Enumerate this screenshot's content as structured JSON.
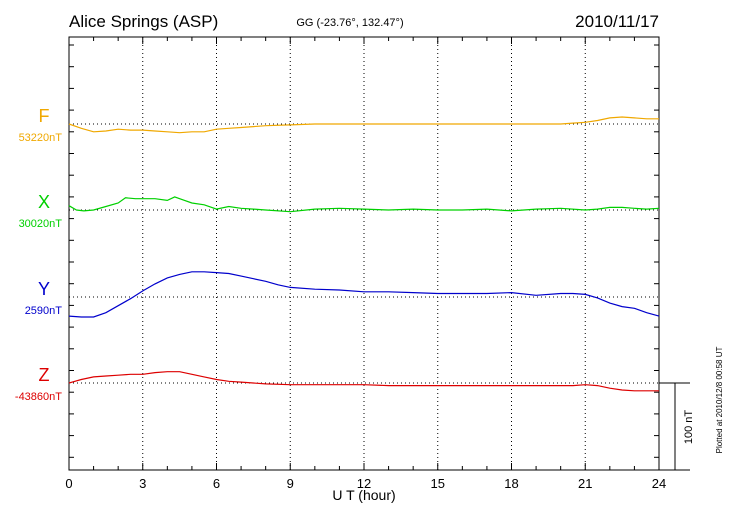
{
  "header": {
    "station": "Alice Springs (ASP)",
    "coords": "GG (-23.76°, 132.47°)",
    "date": "2010/11/17"
  },
  "footnote": "Plotted at 2010/12/8 00:58 UT",
  "colors": {
    "F": "#f0a800",
    "X": "#00d000",
    "Y": "#0000cc",
    "Z": "#dd0000",
    "grid": "#000000"
  },
  "chart_data": {
    "type": "line",
    "xlabel": "U T (hour)",
    "xlim": [
      0,
      24
    ],
    "xticks": [
      0,
      3,
      6,
      9,
      12,
      15,
      18,
      21,
      24
    ],
    "ylabel": "",
    "scale_bar": {
      "value": 100,
      "label": "100 nT"
    },
    "series": [
      {
        "name": "F",
        "baseline_label": "53220nT",
        "baseline": 53220,
        "x": [
          0,
          0.5,
          1,
          1.5,
          2,
          2.5,
          3,
          3.5,
          4,
          4.5,
          5,
          5.5,
          6,
          6.5,
          7,
          8,
          9,
          10,
          11,
          12,
          13,
          14,
          15,
          16,
          17,
          18,
          19,
          20,
          20.5,
          21,
          21.5,
          22,
          22.5,
          23,
          23.5,
          24
        ],
        "y": [
          53220,
          53215,
          53211,
          53212,
          53214,
          53213,
          53213,
          53212,
          53211,
          53210,
          53211,
          53211,
          53214,
          53215,
          53216,
          53218,
          53219,
          53220,
          53220,
          53220,
          53220,
          53220,
          53220,
          53220,
          53220,
          53220,
          53220,
          53220,
          53221,
          53222,
          53224,
          53227,
          53228,
          53227,
          53226,
          53226
        ]
      },
      {
        "name": "X",
        "baseline_label": "30020nT",
        "baseline": 30020,
        "x": [
          0,
          0.3,
          0.6,
          1,
          1.5,
          2,
          2.3,
          2.7,
          3,
          3.5,
          4,
          4.3,
          4.6,
          5,
          5.5,
          6,
          6.5,
          7,
          7.5,
          8,
          9,
          10,
          11,
          12,
          13,
          14,
          15,
          16,
          17,
          18,
          19,
          20,
          21,
          21.5,
          22,
          22.5,
          23,
          23.5,
          24
        ],
        "y": [
          30025,
          30020,
          30019,
          30020,
          30024,
          30028,
          30034,
          30033,
          30033,
          30033,
          30031,
          30035,
          30032,
          30028,
          30026,
          30021,
          30024,
          30022,
          30021,
          30020,
          30018,
          30021,
          30022,
          30021,
          30020,
          30021,
          30020,
          30020,
          30021,
          30019,
          30021,
          30022,
          30020,
          30021,
          30023,
          30023,
          30022,
          30021,
          30022
        ]
      },
      {
        "name": "Y",
        "baseline_label": "2590nT",
        "baseline": 2590,
        "x": [
          0,
          0.5,
          1,
          1.5,
          2,
          2.5,
          3,
          3.5,
          4,
          4.5,
          5,
          5.5,
          6,
          6.5,
          7,
          7.5,
          8,
          8.5,
          9,
          10,
          11,
          12,
          13,
          14,
          15,
          16,
          17,
          18,
          19,
          20,
          20.5,
          21,
          21.5,
          22,
          22.5,
          23,
          23.5,
          24
        ],
        "y": [
          2568,
          2567,
          2567,
          2572,
          2580,
          2588,
          2597,
          2605,
          2612,
          2616,
          2619,
          2619,
          2618,
          2617,
          2614,
          2611,
          2608,
          2604,
          2601,
          2599,
          2598,
          2596,
          2596,
          2595,
          2594,
          2594,
          2594,
          2595,
          2592,
          2594,
          2594,
          2593,
          2589,
          2583,
          2579,
          2577,
          2572,
          2568
        ]
      },
      {
        "name": "Z",
        "baseline_label": "-43860nT",
        "baseline": -43860,
        "x": [
          0,
          0.5,
          1,
          1.5,
          2,
          2.5,
          3,
          3.5,
          4,
          4.5,
          5,
          5.5,
          6,
          6.5,
          7,
          8,
          9,
          10,
          11,
          12,
          13,
          14,
          15,
          16,
          17,
          18,
          19,
          20,
          20.5,
          21,
          21.5,
          22,
          22.5,
          23,
          23.5,
          24
        ],
        "y": [
          -43860,
          -43856,
          -43853,
          -43852,
          -43851,
          -43850,
          -43850,
          -43848,
          -43847,
          -43847,
          -43850,
          -43853,
          -43856,
          -43858,
          -43859,
          -43861,
          -43862,
          -43862,
          -43862,
          -43862,
          -43863,
          -43863,
          -43863,
          -43863,
          -43863,
          -43863,
          -43863,
          -43863,
          -43863,
          -43862,
          -43863,
          -43866,
          -43868,
          -43869,
          -43869,
          -43869
        ]
      }
    ]
  }
}
